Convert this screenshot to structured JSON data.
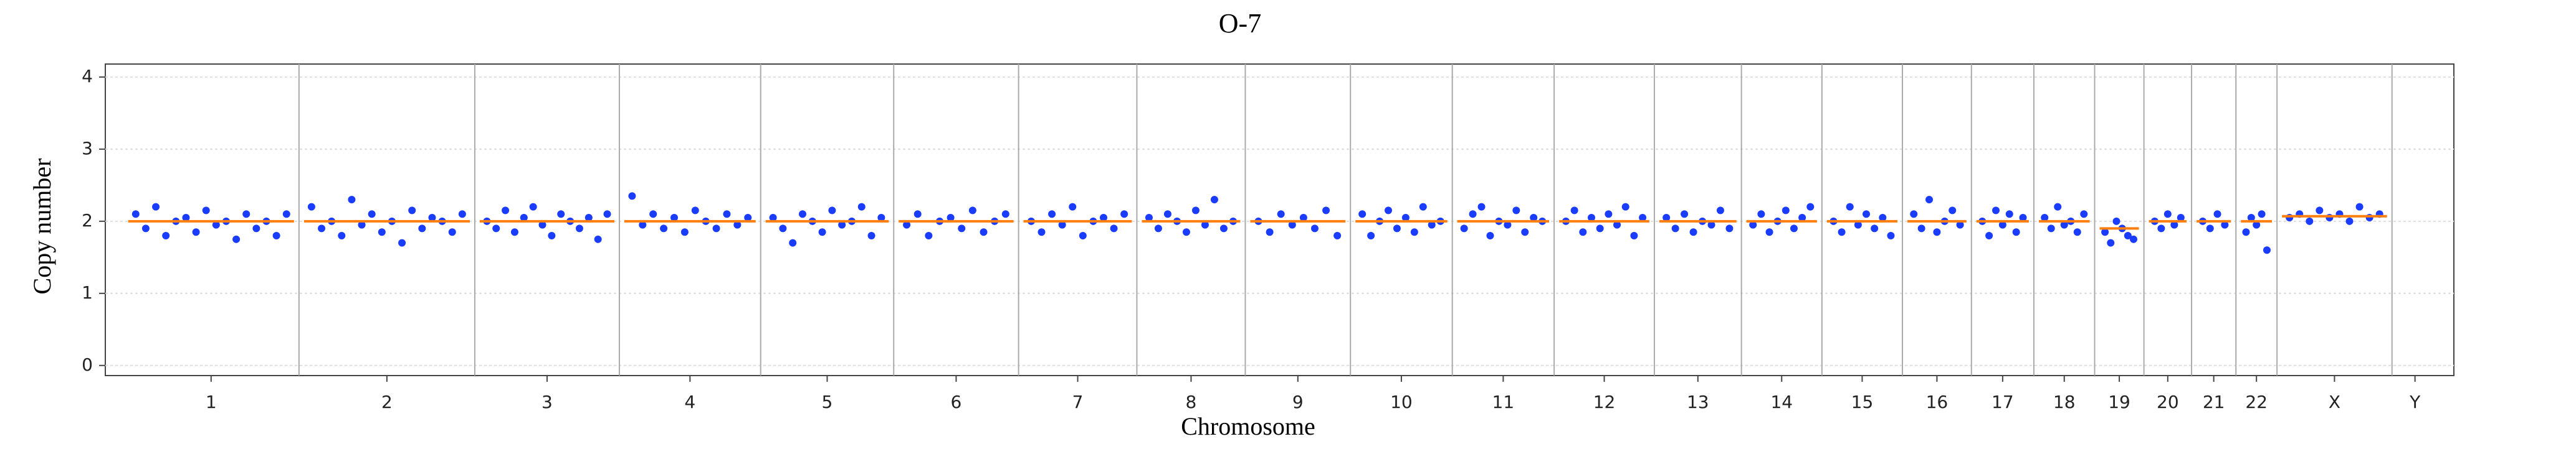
{
  "chart_data": {
    "type": "scatter",
    "title": "O-7",
    "x_label": "Chromosome",
    "y_label": "Copy number",
    "categories": [
      "1",
      "2",
      "3",
      "4",
      "5",
      "6",
      "7",
      "8",
      "9",
      "10",
      "11",
      "12",
      "13",
      "14",
      "15",
      "16",
      "17",
      "18",
      "19",
      "20",
      "21",
      "22",
      "X",
      "Y"
    ],
    "ylim": [
      -0.14,
      4.18
    ],
    "yticks": [
      0,
      1,
      2,
      3,
      4
    ],
    "grid": true,
    "points": {
      "color": "#1a3cff",
      "values": [
        [
          2.1,
          1.9,
          2.2,
          1.8,
          2.0,
          2.05,
          1.85,
          2.15,
          1.95,
          2.0,
          1.75,
          2.1,
          1.9,
          2.0,
          1.8,
          2.1
        ],
        [
          2.2,
          1.9,
          2.0,
          1.8,
          2.3,
          1.95,
          2.1,
          1.85,
          2.0,
          1.7,
          2.15,
          1.9,
          2.05,
          2.0,
          1.85,
          2.1
        ],
        [
          2.0,
          1.9,
          2.15,
          1.85,
          2.05,
          2.2,
          1.95,
          1.8,
          2.1,
          2.0,
          1.9,
          2.05,
          1.75,
          2.1
        ],
        [
          2.35,
          1.95,
          2.1,
          1.9,
          2.05,
          1.85,
          2.15,
          2.0,
          1.9,
          2.1,
          1.95,
          2.05
        ],
        [
          2.05,
          1.9,
          1.7,
          2.1,
          2.0,
          1.85,
          2.15,
          1.95,
          2.0,
          2.2,
          1.8,
          2.05
        ],
        [
          1.95,
          2.1,
          1.8,
          2.0,
          2.05,
          1.9,
          2.15,
          1.85,
          2.0,
          2.1
        ],
        [
          2.0,
          1.85,
          2.1,
          1.95,
          2.2,
          1.8,
          2.0,
          2.05,
          1.9,
          2.1
        ],
        [
          2.05,
          1.9,
          2.1,
          2.0,
          1.85,
          2.15,
          1.95,
          2.3,
          1.9,
          2.0
        ],
        [
          2.0,
          1.85,
          2.1,
          1.95,
          2.05,
          1.9,
          2.15,
          1.8
        ],
        [
          2.1,
          1.8,
          2.0,
          2.15,
          1.9,
          2.05,
          1.85,
          2.2,
          1.95,
          2.0
        ],
        [
          1.9,
          2.1,
          2.2,
          1.8,
          2.0,
          1.95,
          2.15,
          1.85,
          2.05,
          2.0
        ],
        [
          2.0,
          2.15,
          1.85,
          2.05,
          1.9,
          2.1,
          1.95,
          2.2,
          1.8,
          2.05
        ],
        [
          2.05,
          1.9,
          2.1,
          1.85,
          2.0,
          1.95,
          2.15,
          1.9
        ],
        [
          1.95,
          2.1,
          1.85,
          2.0,
          2.15,
          1.9,
          2.05,
          2.2
        ],
        [
          2.0,
          1.85,
          2.2,
          1.95,
          2.1,
          1.9,
          2.05,
          1.8
        ],
        [
          2.1,
          1.9,
          2.3,
          1.85,
          2.0,
          2.15,
          1.95
        ],
        [
          2.0,
          1.8,
          2.15,
          1.95,
          2.1,
          1.85,
          2.05
        ],
        [
          2.05,
          1.9,
          2.2,
          1.95,
          2.0,
          1.85,
          2.1
        ],
        [
          1.85,
          1.7,
          2.0,
          1.9,
          1.8,
          1.75
        ],
        [
          2.0,
          1.9,
          2.1,
          1.95,
          2.05
        ],
        [
          2.0,
          1.9,
          2.1,
          1.95
        ],
        [
          1.85,
          2.05,
          1.95,
          2.1,
          1.6
        ],
        [
          2.05,
          2.1,
          2.0,
          2.15,
          2.05,
          2.1,
          2.0,
          2.2,
          2.05,
          2.1
        ],
        []
      ]
    },
    "segments": {
      "color": "#ff7f0e",
      "values": [
        2.0,
        2.0,
        2.0,
        2.0,
        2.0,
        2.0,
        2.0,
        2.0,
        2.0,
        2.0,
        2.0,
        2.0,
        2.0,
        2.0,
        2.0,
        2.0,
        2.0,
        2.0,
        1.9,
        2.0,
        2.0,
        2.0,
        2.07,
        null
      ]
    }
  }
}
